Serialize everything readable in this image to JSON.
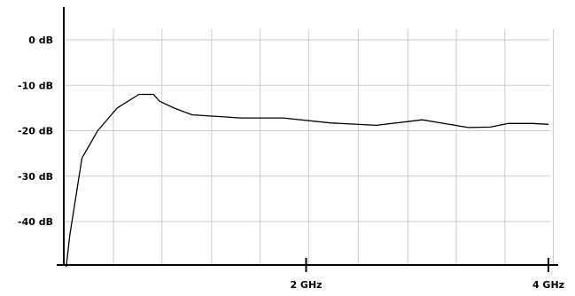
{
  "chart_data": {
    "type": "line",
    "title": "",
    "xlabel": "",
    "ylabel": "",
    "xlim": [
      0,
      4.02
    ],
    "ylim": [
      -50,
      7
    ],
    "grid": true,
    "x_ticks": [
      {
        "value": 2,
        "label": "2 GHz"
      },
      {
        "value": 4,
        "label": "4 GHz"
      }
    ],
    "y_ticks": [
      {
        "value": 0,
        "label": "0 dB"
      },
      {
        "value": -10,
        "label": "-10 dB"
      },
      {
        "value": -20,
        "label": "-20 dB"
      },
      {
        "value": -30,
        "label": "-30 dB"
      },
      {
        "value": -40,
        "label": "-40 dB"
      }
    ],
    "x_gridlines": [
      0.41,
      0.81,
      1.22,
      1.62,
      2.02,
      2.43,
      2.84,
      3.24,
      3.64,
      4.04
    ],
    "series": [
      {
        "name": "",
        "color": "#000000",
        "x": [
          0.02,
          0.05,
          0.15,
          0.28,
          0.44,
          0.62,
          0.74,
          0.79,
          0.91,
          1.06,
          1.46,
          1.81,
          2.21,
          2.58,
          2.96,
          3.34,
          3.52,
          3.67,
          3.87,
          4.0
        ],
        "y": [
          -50,
          -43,
          -26,
          -20,
          -15,
          -12,
          -12,
          -13.5,
          -15,
          -16.5,
          -17.2,
          -17.2,
          -18.3,
          -18.8,
          -17.6,
          -19.3,
          -19.2,
          -18.4,
          -18.4,
          -18.6
        ]
      }
    ]
  }
}
